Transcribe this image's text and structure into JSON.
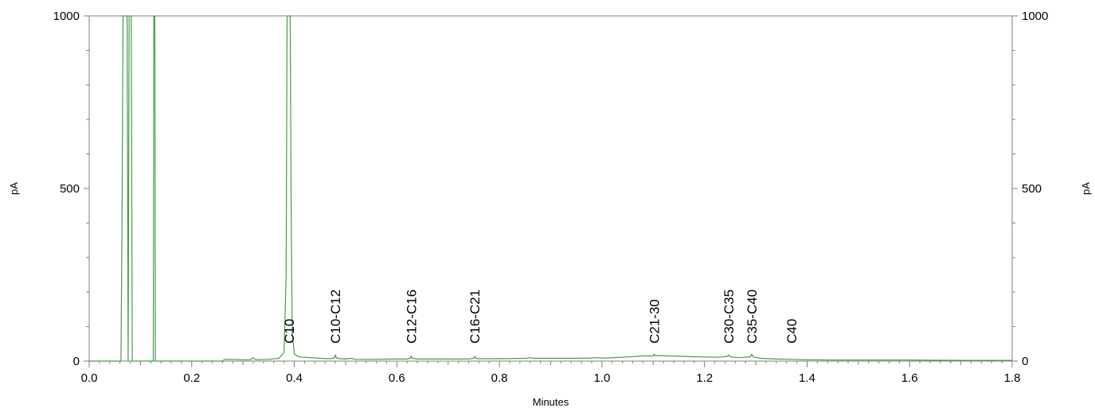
{
  "chart_data": {
    "type": "line",
    "title": "",
    "xlabel": "Minutes",
    "ylabel_left": "pA",
    "ylabel_right": "pA",
    "xlim": [
      0.0,
      1.8
    ],
    "ylim": [
      0,
      1000
    ],
    "x_ticks": [
      "0.0",
      "0.2",
      "0.4",
      "0.6",
      "0.8",
      "1.0",
      "1.2",
      "1.4",
      "1.6",
      "1.8"
    ],
    "y_ticks": [
      "0",
      "500",
      "1000"
    ],
    "grid": false,
    "legend": "none",
    "series_color": "#4a9a4a",
    "series": [
      {
        "x": [
          0.0,
          0.062,
          0.064,
          0.066,
          0.068,
          0.07,
          0.072,
          0.074,
          0.076,
          0.078,
          0.08,
          0.082,
          0.084,
          0.1,
          0.125,
          0.126,
          0.127,
          0.128,
          0.129,
          0.13,
          0.2,
          0.262,
          0.263,
          0.28,
          0.3,
          0.315,
          0.32,
          0.325,
          0.35,
          0.37,
          0.38,
          0.384,
          0.386,
          0.388,
          0.39,
          0.392,
          0.394,
          0.396,
          0.4,
          0.41,
          0.45,
          0.47,
          0.478,
          0.48,
          0.482,
          0.49,
          0.5,
          0.51,
          0.52,
          0.55,
          0.6,
          0.62,
          0.626,
          0.628,
          0.63,
          0.64,
          0.66,
          0.7,
          0.74,
          0.75,
          0.752,
          0.754,
          0.76,
          0.8,
          0.85,
          0.86,
          0.87,
          0.9,
          0.95,
          0.98,
          0.99,
          1.0,
          1.01,
          1.05,
          1.08,
          1.1,
          1.102,
          1.104,
          1.11,
          1.13,
          1.15,
          1.17,
          1.2,
          1.23,
          1.245,
          1.247,
          1.25,
          1.27,
          1.29,
          1.292,
          1.295,
          1.31,
          1.34,
          1.37,
          1.4,
          1.45,
          1.5,
          1.6,
          1.7,
          1.8
        ],
        "y": [
          0,
          0,
          400,
          1000,
          1000,
          1000,
          1000,
          1000,
          0,
          1000,
          1000,
          1000,
          0,
          0,
          0,
          1000,
          1000,
          1000,
          0,
          0,
          0,
          0,
          5,
          5,
          4,
          4,
          10,
          4,
          5,
          8,
          25,
          250,
          1000,
          1000,
          1000,
          1000,
          400,
          80,
          20,
          12,
          8,
          7,
          9,
          18,
          9,
          7,
          6,
          8,
          5,
          5,
          6,
          6,
          8,
          15,
          8,
          6,
          6,
          6,
          6,
          8,
          14,
          8,
          7,
          7,
          8,
          10,
          8,
          8,
          8,
          9,
          10,
          9,
          9,
          12,
          15,
          15,
          20,
          15,
          16,
          15,
          14,
          13,
          12,
          11,
          14,
          18,
          12,
          10,
          13,
          20,
          12,
          8,
          6,
          5,
          4,
          3,
          3,
          3,
          2,
          2
        ]
      }
    ],
    "annotations": [
      {
        "text": "C10",
        "x": 0.39
      },
      {
        "text": "C10-C12",
        "x": 0.48
      },
      {
        "text": "C12-C16",
        "x": 0.628
      },
      {
        "text": "C16-C21",
        "x": 0.752
      },
      {
        "text": "C21-30",
        "x": 1.102
      },
      {
        "text": "C30-C35",
        "x": 1.247
      },
      {
        "text": "C35-C40",
        "x": 1.292
      },
      {
        "text": "C40",
        "x": 1.37
      }
    ]
  }
}
